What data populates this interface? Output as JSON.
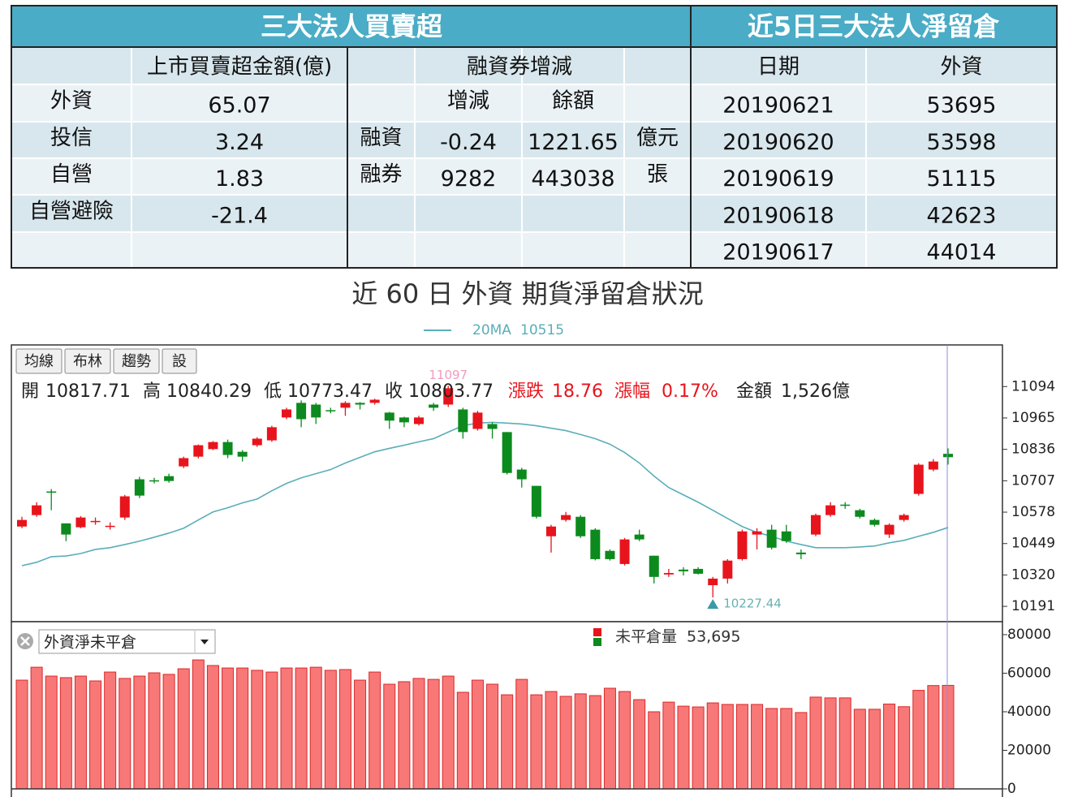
{
  "table": {
    "title_left": "三大法人買賣超",
    "title_right": "近5日三大法人淨留倉",
    "header": {
      "amount": "上市買賣超金額(億)",
      "margin": "融資券增減",
      "date": "日期",
      "foreign": "外資"
    },
    "institutions": [
      {
        "name": "外資",
        "amount": 65.07
      },
      {
        "name": "投信",
        "amount": 3.24
      },
      {
        "name": "自營",
        "amount": 1.83
      },
      {
        "name": "自營避險",
        "amount": -21.4
      }
    ],
    "margin": {
      "sub_headers": [
        "增減",
        "餘額"
      ],
      "rows": [
        {
          "name": "融資",
          "change": -0.24,
          "balance": 1221.65,
          "unit": "億元"
        },
        {
          "name": "融券",
          "change": 9282,
          "balance": 443038,
          "unit": "張"
        }
      ]
    },
    "positions": [
      {
        "date": "20190621",
        "value": 53695
      },
      {
        "date": "20190620",
        "value": 53598
      },
      {
        "date": "20190619",
        "value": 51115
      },
      {
        "date": "20190618",
        "value": 42623
      },
      {
        "date": "20190617",
        "value": 44014
      }
    ]
  },
  "chart_data": [
    {
      "type": "candlestick",
      "title": "近 60 日 外資 期貨淨留倉狀況",
      "buttons": [
        "均線",
        "布林",
        "趨勢",
        "設"
      ],
      "info": {
        "open_label": "開",
        "high_label": "高",
        "low_label": "低",
        "close_label": "收",
        "change_label": "漲跌",
        "change": 18.76,
        "pct_label": "漲幅",
        "pct": "0.17%",
        "amount_label": "金額",
        "amount": "1,526億"
      },
      "up_color": "#e8141c",
      "down_color": "#0c8a1e",
      "open": [
        10519,
        10566,
        10663,
        10532,
        10516,
        10538,
        10519,
        10556,
        10713,
        10709,
        10726,
        10766,
        10806,
        10837,
        10866,
        10826,
        10853,
        10873,
        10967,
        11027,
        11020,
        10997,
        11007,
        11027,
        11027,
        10987,
        10967,
        10940,
        11020,
        11020,
        11000,
        10920,
        10940,
        10907,
        10753,
        10686,
        10479,
        10546,
        10559,
        10506,
        10419,
        10365,
        10486,
        10399,
        10322,
        10342,
        10345,
        10278,
        10305,
        10385,
        10486,
        10506,
        10499,
        10412,
        10486,
        10566,
        10609,
        10586,
        10546,
        10486,
        10546,
        10653,
        10753,
        10817.71
      ],
      "high": [
        10559,
        10619,
        10673,
        10532,
        10562,
        10556,
        10536,
        10649,
        10723,
        10719,
        10736,
        10806,
        10856,
        10870,
        10876,
        10833,
        10886,
        10933,
        11007,
        11037,
        11027,
        11007,
        11034,
        11030,
        11044,
        10990,
        10970,
        10974,
        11027,
        11097,
        11007,
        10994,
        10947,
        10907,
        10760,
        10686,
        10526,
        10579,
        10566,
        10512,
        10425,
        10472,
        10506,
        10399,
        10345,
        10352,
        10352,
        10312,
        10385,
        10506,
        10512,
        10526,
        10526,
        10425,
        10572,
        10619,
        10619,
        10592,
        10552,
        10532,
        10572,
        10779,
        10796,
        10840.29
      ],
      "low": [
        10512,
        10559,
        10586,
        10459,
        10512,
        10526,
        10506,
        10546,
        10636,
        10696,
        10699,
        10759,
        10799,
        10833,
        10800,
        10786,
        10846,
        10867,
        10960,
        10927,
        10940,
        10984,
        10974,
        11000,
        11020,
        10920,
        10927,
        10934,
        10994,
        11010,
        10880,
        10913,
        10880,
        10733,
        10679,
        10552,
        10412,
        10539,
        10472,
        10380,
        10379,
        10359,
        10459,
        10285,
        10312,
        10318,
        10322,
        10227.44,
        10285,
        10379,
        10425,
        10425,
        10452,
        10385,
        10479,
        10559,
        10592,
        10552,
        10519,
        10472,
        10539,
        10646,
        10746,
        10773.47
      ],
      "close": [
        10546,
        10606,
        10659,
        10486,
        10556,
        10542,
        10522,
        10643,
        10646,
        10706,
        10706,
        10800,
        10853,
        10866,
        10813,
        10806,
        10880,
        10927,
        11000,
        10960,
        10967,
        10994,
        11027,
        11020,
        11040,
        10954,
        10947,
        10967,
        11007,
        11087,
        10907,
        10987,
        10920,
        10739,
        10713,
        10559,
        10519,
        10566,
        10479,
        10385,
        10385,
        10466,
        10466,
        10312,
        10328,
        10335,
        10325,
        10305,
        10379,
        10499,
        10499,
        10432,
        10459,
        10405,
        10566,
        10606,
        10606,
        10559,
        10526,
        10526,
        10566,
        10773,
        10786,
        10803.77
      ],
      "ma": {
        "name": "20MA",
        "color": "#5aaeb8",
        "values": [
          10358,
          10372,
          10395,
          10398,
          10408,
          10425,
          10432,
          10445,
          10459,
          10475,
          10492,
          10512,
          10546,
          10579,
          10596,
          10616,
          10632,
          10666,
          10696,
          10719,
          10736,
          10753,
          10780,
          10803,
          10826,
          10840,
          10853,
          10867,
          10880,
          10907,
          10933,
          10944,
          10947,
          10944,
          10940,
          10933,
          10923,
          10913,
          10897,
          10880,
          10857,
          10823,
          10780,
          10726,
          10679,
          10649,
          10619,
          10586,
          10552,
          10519,
          10495,
          10479,
          10459,
          10445,
          10432,
          10432,
          10432,
          10435,
          10439,
          10452,
          10462,
          10479,
          10495,
          10515
        ]
      },
      "ylim": [
        10128,
        11265
      ],
      "yticks": [
        10191,
        10320,
        10449,
        10578,
        10707,
        10836,
        10965,
        11094
      ]
    },
    {
      "type": "bar",
      "selector": "外資淨未平倉",
      "series": [
        {
          "name": "未平倉量",
          "color": "#f87878",
          "values": [
            56400,
            63100,
            58500,
            57700,
            58500,
            56000,
            60600,
            57300,
            58500,
            60200,
            59400,
            62300,
            66900,
            64000,
            62700,
            62700,
            61500,
            60600,
            62700,
            62700,
            63100,
            61500,
            61900,
            56400,
            60600,
            54300,
            55600,
            57300,
            56800,
            58500,
            50100,
            56400,
            54300,
            48800,
            56800,
            48800,
            50500,
            48000,
            49300,
            48400,
            52200,
            50500,
            46300,
            40000,
            45000,
            42900,
            42500,
            44600,
            43800,
            43800,
            43800,
            41700,
            41700,
            39600,
            47600,
            47200,
            47200,
            41300,
            41300,
            44014,
            42623,
            51115,
            53598,
            53695
          ]
        }
      ],
      "legend_value": "53,695",
      "ylim": [
        0,
        86300
      ],
      "yticks": [
        0,
        20000,
        40000,
        60000,
        80000
      ]
    }
  ]
}
